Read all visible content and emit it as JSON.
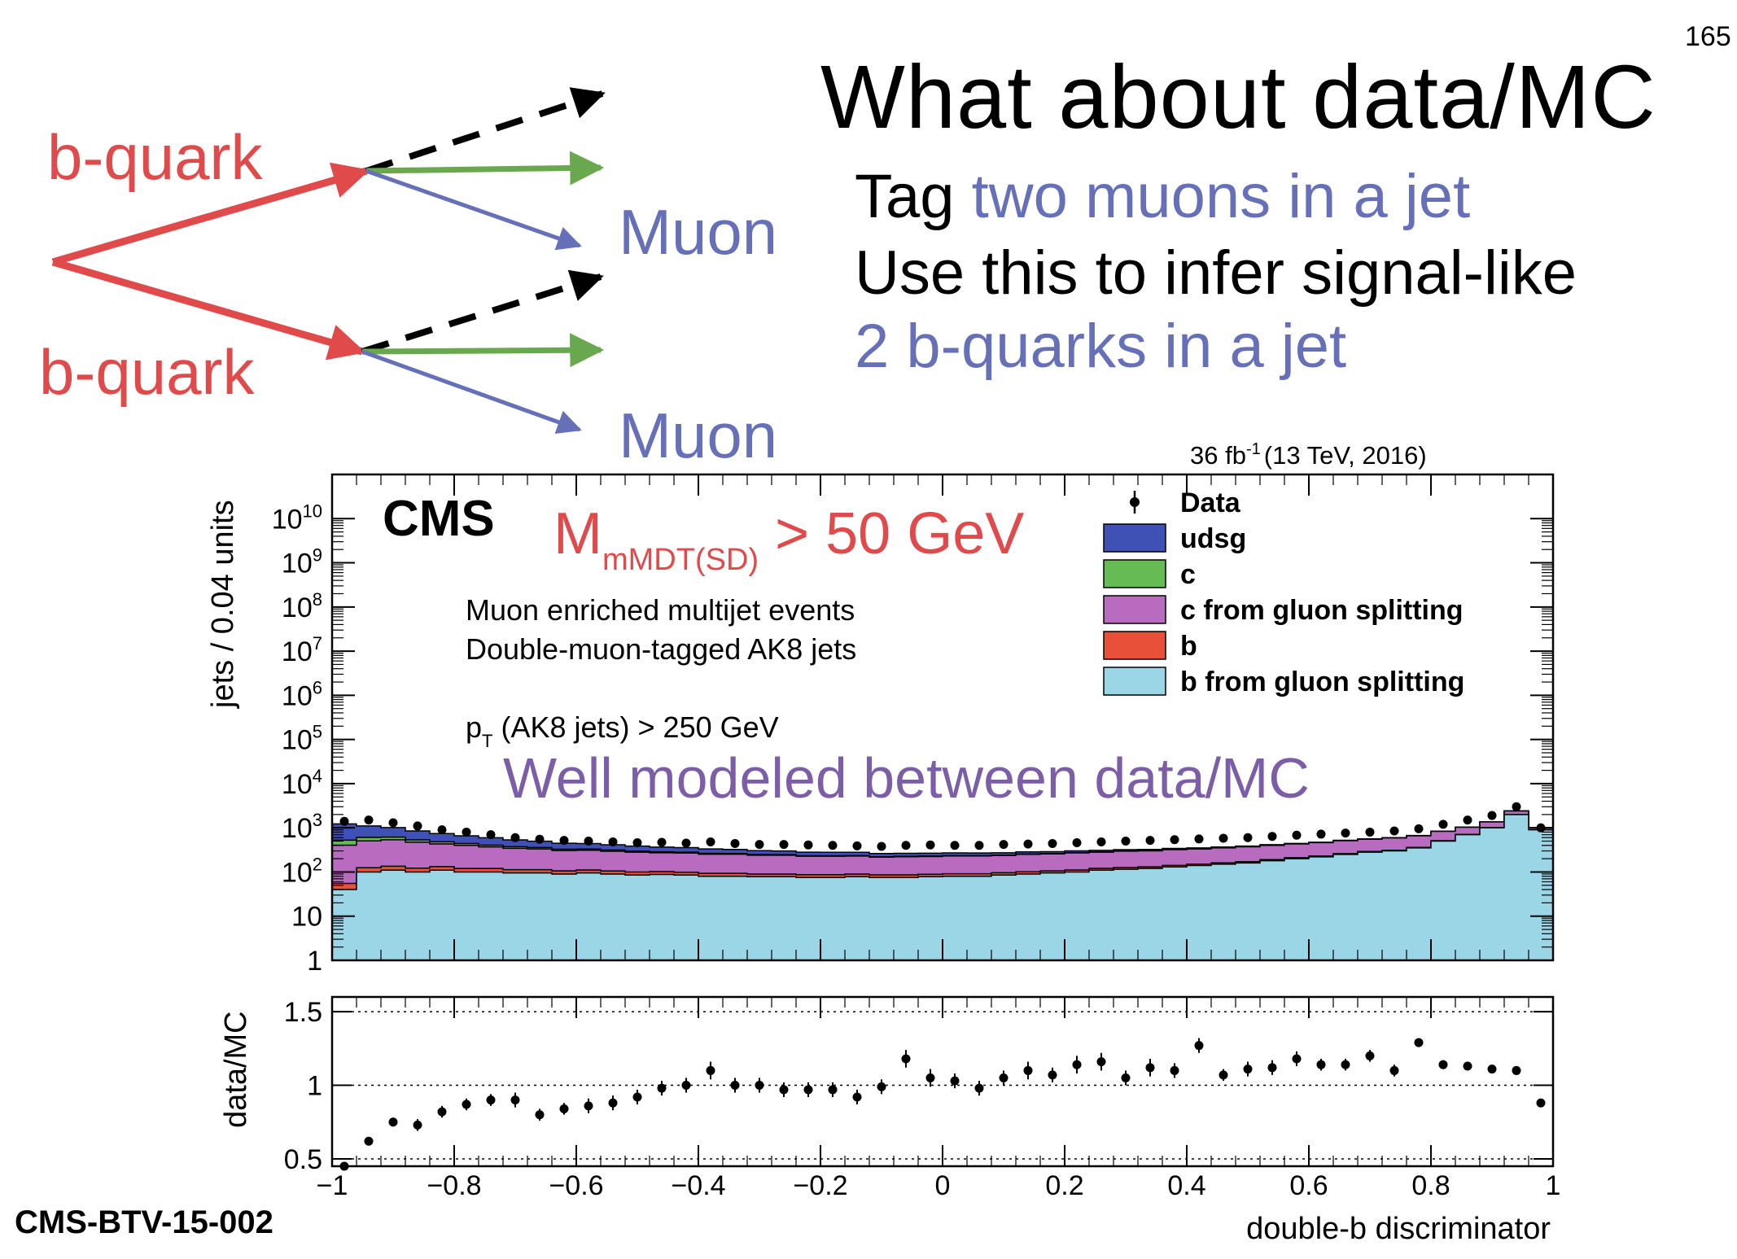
{
  "page_number": "165",
  "title": "What about data/MC",
  "bullets": {
    "line1_prefix": "Tag ",
    "line1_highlight": "two muons in a jet",
    "line2": "Use this to infer signal-like",
    "line3": "2 b-quarks in a jet"
  },
  "diagram": {
    "quark_top": "b-quark",
    "quark_bottom": "b-quark",
    "muon_top": "Muon",
    "muon_bottom": "Muon",
    "colors": {
      "quark": "#e04a4a",
      "muon": "#6670b8",
      "green": "#6aa84f",
      "black": "#000000"
    }
  },
  "reference": "CMS-BTV-15-002",
  "chart_data": {
    "type": "bar",
    "luminosity": "36 fb",
    "luminosity_sup": "-1",
    "energy": "(13 TeV, 2016)",
    "cms_label": "CMS",
    "mass_cut": {
      "main": "M",
      "sub": "mMDT(SD)",
      "rest": " > 50 GeV"
    },
    "annotations": [
      "Muon enriched multijet events",
      "Double-muon-tagged AK8 jets"
    ],
    "pt_cut": {
      "main": "p",
      "sub": "T",
      "rest": " (AK8 jets) > 250 GeV"
    },
    "overlay_text": "Well modeled between data/MC",
    "ylabel": "jets / 0.04 units",
    "xlabel": "double-b discriminator",
    "ratio_ylabel": "data/MC",
    "y_log": true,
    "ylim": [
      1,
      100000000000
    ],
    "ratio_ylim": [
      0.45,
      1.6
    ],
    "xlim": [
      -1,
      1
    ],
    "bin_width": 0.04,
    "main_ticks": [
      "1",
      "10",
      "10^2",
      "10^3",
      "10^4",
      "10^5",
      "10^6",
      "10^7",
      "10^8",
      "10^9",
      "10^10"
    ],
    "ratio_ticks": [
      "0.5",
      "1",
      "1.5"
    ],
    "x_ticks": [
      "−1",
      "−0.8",
      "−0.6",
      "−0.4",
      "−0.2",
      "0",
      "0.2",
      "0.4",
      "0.6",
      "0.8",
      "1"
    ],
    "legend_position": "top-right",
    "legend": [
      {
        "label": "Data",
        "kind": "marker",
        "color": "#000000"
      },
      {
        "label": "udsg",
        "kind": "box",
        "color": "#3f51b5"
      },
      {
        "label": "c",
        "kind": "box",
        "color": "#66bb55"
      },
      {
        "label": "c from gluon splitting",
        "kind": "box",
        "color": "#b86cc0"
      },
      {
        "label": "b",
        "kind": "box",
        "color": "#e8503a"
      },
      {
        "label": "b from gluon splitting",
        "kind": "box",
        "color": "#9ad6e6"
      }
    ],
    "x": [
      -0.98,
      -0.94,
      -0.9,
      -0.86,
      -0.82,
      -0.78,
      -0.74,
      -0.7,
      -0.66,
      -0.62,
      -0.58,
      -0.54,
      -0.5,
      -0.46,
      -0.42,
      -0.38,
      -0.34,
      -0.3,
      -0.26,
      -0.22,
      -0.18,
      -0.14,
      -0.1,
      -0.06,
      -0.02,
      0.02,
      0.06,
      0.1,
      0.14,
      0.18,
      0.22,
      0.26,
      0.3,
      0.34,
      0.38,
      0.42,
      0.46,
      0.5,
      0.54,
      0.58,
      0.62,
      0.66,
      0.7,
      0.74,
      0.78,
      0.82,
      0.86,
      0.9,
      0.94,
      0.98
    ],
    "series": [
      {
        "name": "b from gluon splitting",
        "color": "#9ad6e6",
        "values": [
          40,
          100,
          110,
          100,
          110,
          100,
          100,
          95,
          95,
          90,
          95,
          90,
          85,
          88,
          85,
          80,
          80,
          78,
          78,
          75,
          75,
          78,
          75,
          75,
          78,
          80,
          80,
          85,
          90,
          95,
          100,
          110,
          115,
          120,
          130,
          140,
          150,
          160,
          180,
          200,
          220,
          250,
          280,
          300,
          350,
          500,
          700,
          1000,
          2000,
          900
        ]
      },
      {
        "name": "b",
        "color": "#e8503a",
        "values": [
          15,
          25,
          25,
          22,
          22,
          20,
          20,
          18,
          18,
          16,
          16,
          15,
          15,
          14,
          14,
          13,
          13,
          12,
          12,
          12,
          12,
          12,
          11,
          11,
          11,
          11,
          11,
          11,
          11,
          11,
          11,
          11,
          11,
          11,
          11,
          11,
          11,
          11,
          11,
          11,
          11,
          11,
          11,
          11,
          11,
          11,
          11,
          11,
          11,
          11
        ]
      },
      {
        "name": "c from gluon splitting",
        "color": "#b86cc0",
        "values": [
          350,
          380,
          400,
          350,
          300,
          280,
          250,
          230,
          220,
          200,
          200,
          190,
          180,
          170,
          170,
          160,
          160,
          150,
          150,
          140,
          140,
          140,
          130,
          135,
          135,
          140,
          140,
          140,
          150,
          150,
          160,
          160,
          170,
          170,
          180,
          180,
          190,
          200,
          210,
          220,
          230,
          250,
          260,
          280,
          300,
          320,
          320,
          350,
          400,
          100
        ]
      },
      {
        "name": "c",
        "color": "#66bb55",
        "values": [
          120,
          100,
          80,
          60,
          50,
          40,
          35,
          30,
          25,
          22,
          20,
          18,
          16,
          14,
          12,
          10,
          9,
          8,
          7,
          6,
          6,
          5,
          5,
          5,
          5,
          4,
          4,
          4,
          4,
          4,
          4,
          4,
          3,
          3,
          3,
          3,
          3,
          3,
          3,
          3,
          3,
          3,
          3,
          3,
          3,
          3,
          3,
          3,
          3,
          3
        ]
      },
      {
        "name": "udsg",
        "color": "#3f51b5",
        "values": [
          700,
          500,
          400,
          320,
          260,
          220,
          190,
          160,
          140,
          120,
          110,
          100,
          90,
          80,
          75,
          70,
          62,
          56,
          52,
          48,
          46,
          44,
          41,
          39,
          37,
          35,
          34,
          32,
          30,
          28,
          26,
          24,
          22,
          20,
          18,
          16,
          14,
          12,
          11,
          10,
          9,
          8,
          7,
          6,
          5,
          4,
          3,
          2,
          1,
          1
        ]
      }
    ],
    "data_points": [
      1400,
      1500,
      1300,
      1100,
      900,
      800,
      700,
      600,
      550,
      520,
      500,
      480,
      460,
      470,
      450,
      480,
      440,
      420,
      420,
      410,
      400,
      390,
      380,
      400,
      410,
      400,
      400,
      420,
      430,
      440,
      460,
      480,
      500,
      520,
      540,
      560,
      580,
      600,
      640,
      680,
      720,
      760,
      800,
      850,
      950,
      1200,
      1500,
      1900,
      3000,
      1000
    ],
    "ratio": {
      "values": [
        0.45,
        0.62,
        0.75,
        0.73,
        0.82,
        0.87,
        0.9,
        0.9,
        0.8,
        0.84,
        0.86,
        0.88,
        0.92,
        0.98,
        1.0,
        1.1,
        1.0,
        1.0,
        0.97,
        0.97,
        0.97,
        0.92,
        0.99,
        1.18,
        1.05,
        1.03,
        0.98,
        1.05,
        1.1,
        1.07,
        1.14,
        1.16,
        1.05,
        1.12,
        1.1,
        1.27,
        1.07,
        1.11,
        1.12,
        1.18,
        1.14,
        1.14,
        1.2,
        1.1,
        1.29,
        1.14,
        1.13,
        1.11,
        1.1,
        0.88
      ],
      "errors": [
        0.0,
        0.0,
        0.03,
        0.04,
        0.04,
        0.04,
        0.04,
        0.05,
        0.04,
        0.04,
        0.05,
        0.05,
        0.05,
        0.05,
        0.05,
        0.06,
        0.05,
        0.05,
        0.05,
        0.05,
        0.05,
        0.05,
        0.05,
        0.06,
        0.06,
        0.05,
        0.05,
        0.05,
        0.06,
        0.05,
        0.06,
        0.06,
        0.05,
        0.06,
        0.05,
        0.05,
        0.04,
        0.05,
        0.05,
        0.05,
        0.04,
        0.04,
        0.04,
        0.04,
        0.03,
        0.03,
        0.02,
        0.0,
        0.0,
        0.0
      ]
    }
  }
}
